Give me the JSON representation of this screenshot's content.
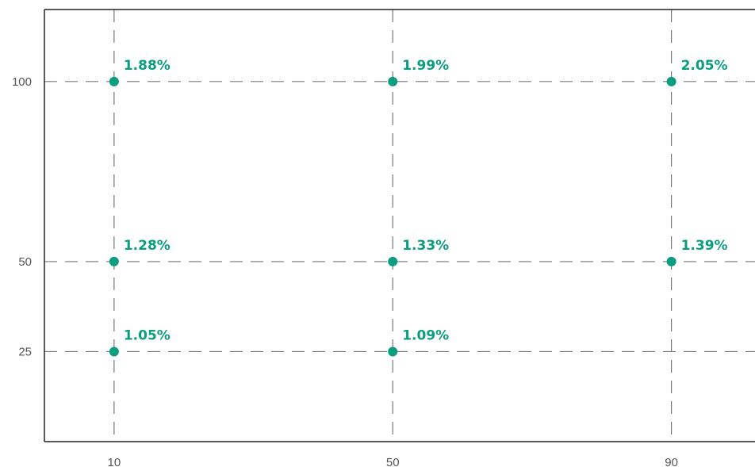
{
  "chart_data": {
    "type": "scatter",
    "title": "",
    "xlabel": "",
    "ylabel": "",
    "x_ticks": [
      10,
      50,
      90
    ],
    "y_ticks": [
      25,
      50,
      100
    ],
    "x_tick_labels": [
      "10",
      "50",
      "90"
    ],
    "y_tick_labels": [
      "25",
      "50",
      "100"
    ],
    "xlim": [
      0,
      102
    ],
    "ylim": [
      0,
      120
    ],
    "grid": "dashed at ticks",
    "legend": "none",
    "marker_color": "#0b9e7e",
    "points": [
      {
        "x": 10,
        "y": 100,
        "label": "1.88%"
      },
      {
        "x": 50,
        "y": 100,
        "label": "1.99%"
      },
      {
        "x": 90,
        "y": 100,
        "label": "2.05%"
      },
      {
        "x": 10,
        "y": 50,
        "label": "1.28%"
      },
      {
        "x": 50,
        "y": 50,
        "label": "1.33%"
      },
      {
        "x": 90,
        "y": 50,
        "label": "1.39%"
      },
      {
        "x": 10,
        "y": 25,
        "label": "1.05%"
      },
      {
        "x": 50,
        "y": 25,
        "label": "1.09%"
      }
    ]
  }
}
